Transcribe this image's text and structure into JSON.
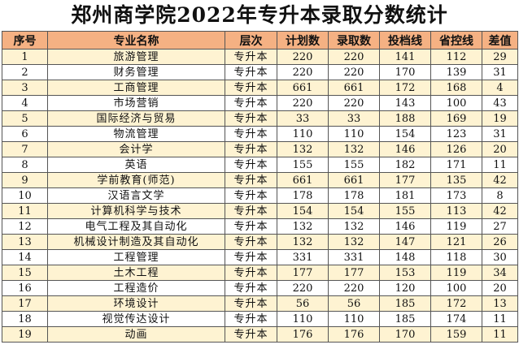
{
  "title": "郑州商学院2022年专升本录取分数统计",
  "headers": [
    "序号",
    "专业名称",
    "层次",
    "计划数",
    "录取数",
    "投档线",
    "省控线",
    "差值"
  ],
  "rows": [
    [
      "1",
      "旅游管理",
      "专升本",
      "220",
      "220",
      "141",
      "112",
      "29"
    ],
    [
      "2",
      "财务管理",
      "专升本",
      "220",
      "220",
      "170",
      "139",
      "31"
    ],
    [
      "3",
      "工商管理",
      "专升本",
      "661",
      "661",
      "172",
      "168",
      "4"
    ],
    [
      "4",
      "市场营销",
      "专升本",
      "220",
      "220",
      "143",
      "100",
      "43"
    ],
    [
      "5",
      "国际经济与贸易",
      "专升本",
      "33",
      "33",
      "188",
      "169",
      "19"
    ],
    [
      "6",
      "物流管理",
      "专升本",
      "110",
      "110",
      "154",
      "123",
      "31"
    ],
    [
      "7",
      "会计学",
      "专升本",
      "132",
      "132",
      "146",
      "126",
      "20"
    ],
    [
      "8",
      "英语",
      "专升本",
      "155",
      "155",
      "182",
      "171",
      "11"
    ],
    [
      "9",
      "学前教育(师范)",
      "专升本",
      "661",
      "661",
      "177",
      "135",
      "42"
    ],
    [
      "10",
      "汉语言文学",
      "专升本",
      "178",
      "178",
      "181",
      "173",
      "8"
    ],
    [
      "11",
      "计算机科学与技术",
      "专升本",
      "154",
      "154",
      "155",
      "113",
      "42"
    ],
    [
      "12",
      "电气工程及其自动化",
      "专升本",
      "132",
      "132",
      "146",
      "119",
      "27"
    ],
    [
      "13",
      "机械设计制造及其自动化",
      "专升本",
      "132",
      "132",
      "147",
      "121",
      "26"
    ],
    [
      "14",
      "工程管理",
      "专升本",
      "331",
      "331",
      "148",
      "118",
      "30"
    ],
    [
      "15",
      "土木工程",
      "专升本",
      "177",
      "177",
      "153",
      "119",
      "34"
    ],
    [
      "16",
      "工程造价",
      "专升本",
      "220",
      "220",
      "120",
      "100",
      "20"
    ],
    [
      "17",
      "环境设计",
      "专升本",
      "56",
      "56",
      "185",
      "172",
      "13"
    ],
    [
      "18",
      "视觉传达设计",
      "专升本",
      "110",
      "110",
      "185",
      "174",
      "11"
    ],
    [
      "19",
      "动画",
      "专升本",
      "176",
      "176",
      "170",
      "159",
      "11"
    ]
  ],
  "colors": {
    "header_bg": "#f5b183",
    "odd_row_bg": "#fef3d2",
    "even_row_bg": "#ffffff"
  }
}
